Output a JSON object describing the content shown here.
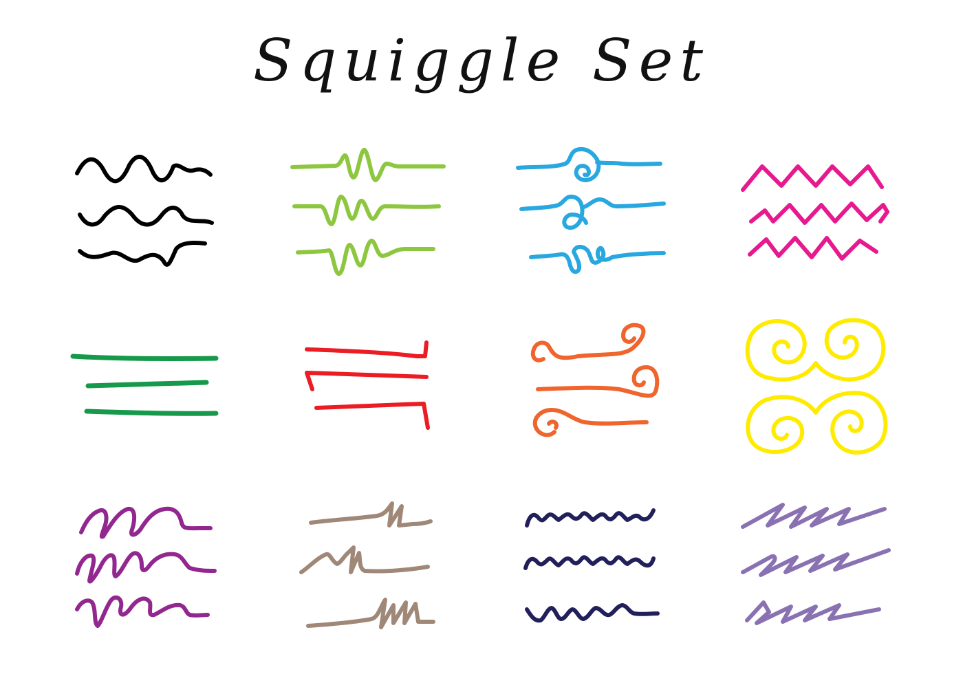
{
  "title": "Squiggle Set",
  "groups": [
    {
      "name": "wave",
      "color": "#000000"
    },
    {
      "name": "pulse",
      "color": "#8dc63f"
    },
    {
      "name": "loop",
      "color": "#29a8e0"
    },
    {
      "name": "zigzag",
      "color": "#e6198f"
    },
    {
      "name": "line",
      "color": "#16994a"
    },
    {
      "name": "bracket",
      "color": "#ec1c24"
    },
    {
      "name": "curl",
      "color": "#f0642d"
    },
    {
      "name": "spiral",
      "color": "#ffeb00"
    },
    {
      "name": "scribble",
      "color": "#92278f"
    },
    {
      "name": "jag",
      "color": "#a08878"
    },
    {
      "name": "ripple",
      "color": "#22205a"
    },
    {
      "name": "slash",
      "color": "#8a72b2"
    }
  ]
}
